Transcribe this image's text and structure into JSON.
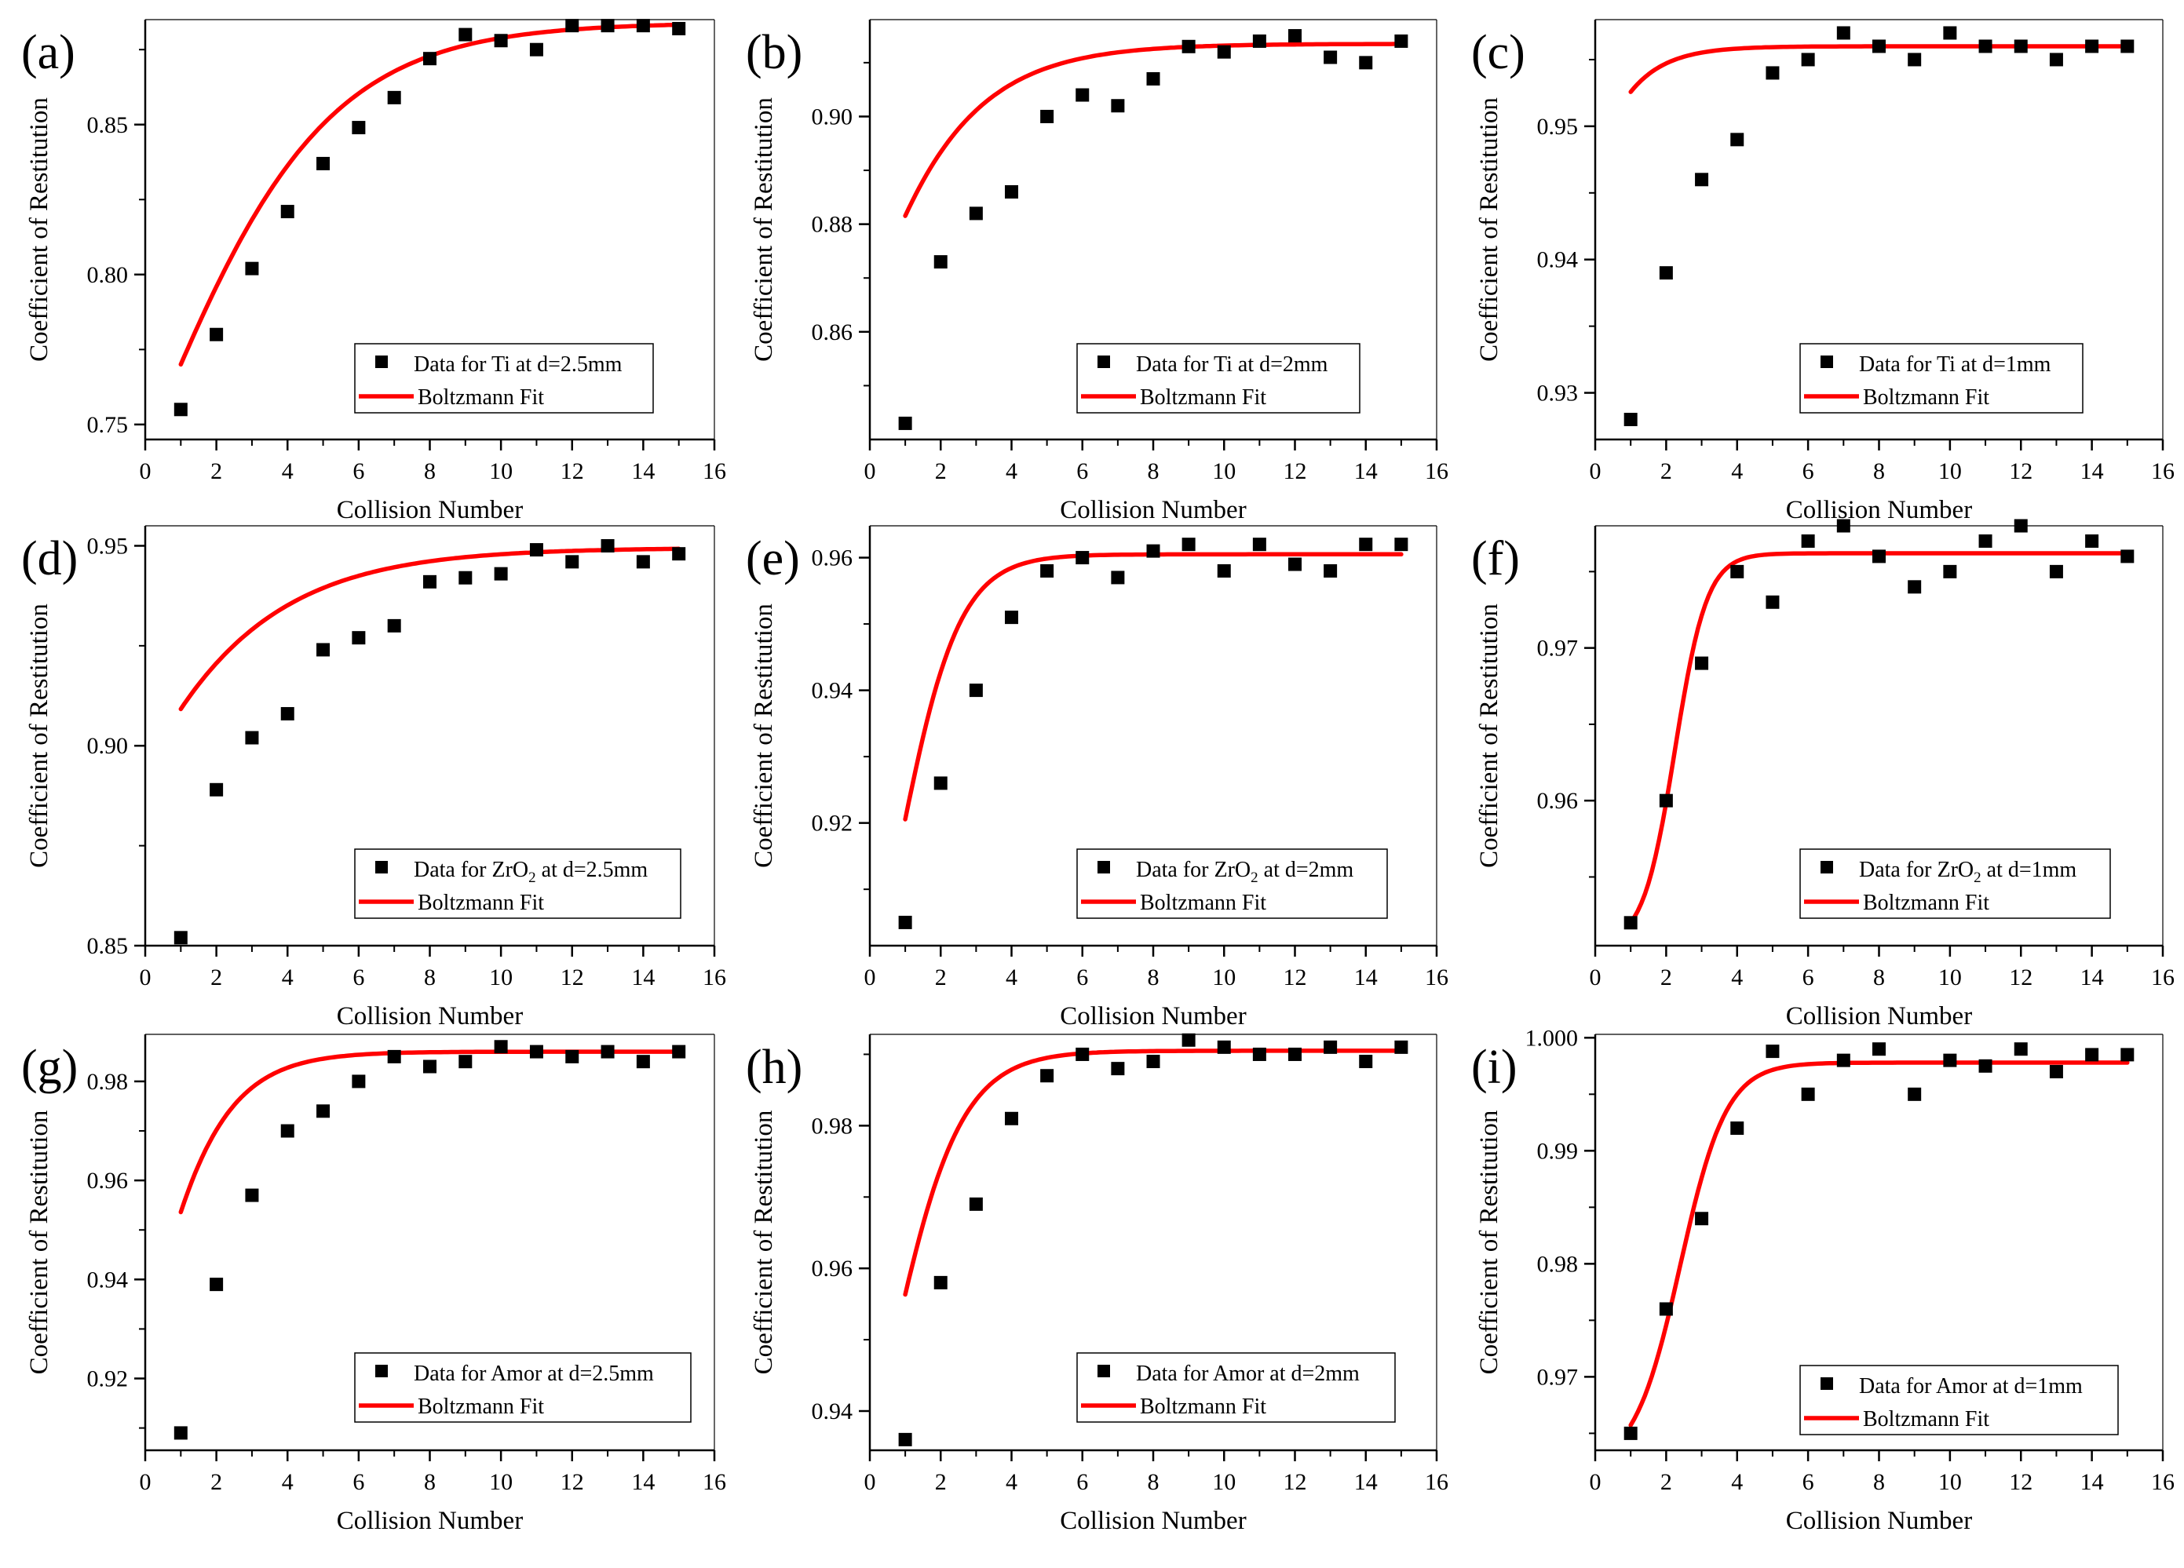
{
  "figure": {
    "xlabel": "Collision Number",
    "ylabel": "Coefficient of Restitution",
    "fit_label": "Boltzmann Fit",
    "marker_color": "#000000",
    "fit_color": "#ff0000"
  },
  "chart_data": [
    {
      "panel": "(a)",
      "type": "scatter",
      "title": "",
      "xlabel": "Collision Number",
      "ylabel": "Coefficient of Restitution",
      "xlim": [
        0,
        16
      ],
      "ylim": [
        0.745,
        0.885
      ],
      "xticks": [
        "0",
        "2",
        "4",
        "6",
        "8",
        "10",
        "12",
        "14",
        "16"
      ],
      "yticks": [
        0.75,
        0.8,
        0.85
      ],
      "ytick_labels": [
        "0.75",
        "0.80",
        "0.85"
      ],
      "legend": {
        "pre": "Data for Ti at d=2.5mm",
        "sub": "",
        "post": "",
        "fit": "Boltzmann Fit"
      },
      "series": [
        {
          "name": "Data for Ti at d=2.5mm",
          "x": [
            1,
            2,
            3,
            4,
            5,
            6,
            7,
            8,
            9,
            10,
            11,
            12,
            13,
            14,
            15
          ],
          "values": [
            0.755,
            0.78,
            0.802,
            0.821,
            0.837,
            0.849,
            0.859,
            0.872,
            0.88,
            0.878,
            0.875,
            0.883,
            0.883,
            0.883,
            0.882
          ]
        },
        {
          "name": "Boltzmann Fit",
          "fit": {
            "A1": 0.6,
            "A2": 0.884,
            "x0": 0.0,
            "dx": 2.5
          }
        }
      ]
    },
    {
      "panel": "(b)",
      "type": "scatter",
      "title": "",
      "xlabel": "Collision Number",
      "ylabel": "Coefficient of Restitution",
      "xlim": [
        0,
        16
      ],
      "ylim": [
        0.84,
        0.918
      ],
      "xticks": [
        "0",
        "2",
        "4",
        "6",
        "8",
        "10",
        "12",
        "14",
        "16"
      ],
      "yticks": [
        0.86,
        0.88,
        0.9
      ],
      "ytick_labels": [
        "0.86",
        "0.88",
        "0.90"
      ],
      "legend": {
        "pre": "Data for Ti at d=2mm",
        "sub": "",
        "post": "",
        "fit": "Boltzmann Fit"
      },
      "series": [
        {
          "name": "Data for Ti at d=2mm",
          "x": [
            1,
            2,
            3,
            4,
            5,
            6,
            7,
            8,
            9,
            10,
            11,
            12,
            13,
            14,
            15
          ],
          "values": [
            0.843,
            0.873,
            0.882,
            0.886,
            0.9,
            0.904,
            0.902,
            0.907,
            0.913,
            0.912,
            0.914,
            0.915,
            0.911,
            0.91,
            0.914
          ]
        },
        {
          "name": "Boltzmann Fit",
          "fit": {
            "A1": 0.7,
            "A2": 0.9135,
            "x0": -2.3,
            "dx": 1.9
          }
        }
      ]
    },
    {
      "panel": "(c)",
      "type": "scatter",
      "title": "",
      "xlabel": "Collision Number",
      "ylabel": "Coefficient of Restitution",
      "xlim": [
        0,
        16
      ],
      "ylim": [
        0.9265,
        0.958
      ],
      "xticks": [
        "0",
        "2",
        "4",
        "6",
        "8",
        "10",
        "12",
        "14",
        "16"
      ],
      "yticks": [
        0.93,
        0.94,
        0.95
      ],
      "ytick_labels": [
        "0.93",
        "0.94",
        "0.95"
      ],
      "legend": {
        "pre": "Data for Ti at d=1mm",
        "sub": "",
        "post": "",
        "fit": "Boltzmann Fit"
      },
      "series": [
        {
          "name": "Data for Ti at d=1mm",
          "x": [
            1,
            2,
            3,
            4,
            5,
            6,
            7,
            8,
            9,
            10,
            11,
            12,
            13,
            14,
            15
          ],
          "values": [
            0.928,
            0.939,
            0.946,
            0.949,
            0.954,
            0.955,
            0.957,
            0.956,
            0.955,
            0.957,
            0.956,
            0.956,
            0.955,
            0.956,
            0.956
          ]
        },
        {
          "name": "Boltzmann Fit",
          "fit": {
            "A1": 0.85,
            "A2": 0.956,
            "x0": -2.4,
            "dx": 1.0
          }
        }
      ]
    },
    {
      "panel": "(d)",
      "type": "scatter",
      "title": "",
      "xlabel": "Collision Number",
      "ylabel": "Coefficient of Restitution",
      "xlim": [
        0,
        16
      ],
      "ylim": [
        0.85,
        0.955
      ],
      "xticks": [
        "0",
        "2",
        "4",
        "6",
        "8",
        "10",
        "12",
        "14",
        "16"
      ],
      "yticks": [
        0.85,
        0.9,
        0.95
      ],
      "ytick_labels": [
        "0.85",
        "0.90",
        "0.95"
      ],
      "legend": {
        "pre": "Data for ZrO",
        "sub": "2",
        "post": " at d=2.5mm",
        "fit": "Boltzmann Fit"
      },
      "series": [
        {
          "name": "Data for ZrO2 at d=2.5mm",
          "x": [
            1,
            2,
            3,
            4,
            5,
            6,
            7,
            8,
            9,
            10,
            11,
            12,
            13,
            14,
            15
          ],
          "values": [
            0.852,
            0.889,
            0.902,
            0.908,
            0.924,
            0.927,
            0.93,
            0.941,
            0.942,
            0.943,
            0.949,
            0.946,
            0.95,
            0.946,
            0.948
          ]
        },
        {
          "name": "Boltzmann Fit",
          "fit": {
            "A1": 0.6,
            "A2": 0.9495,
            "x0": -4.5,
            "dx": 2.7
          }
        }
      ]
    },
    {
      "panel": "(e)",
      "type": "scatter",
      "title": "",
      "xlabel": "Collision Number",
      "ylabel": "Coefficient of Restitution",
      "xlim": [
        0,
        16
      ],
      "ylim": [
        0.9015,
        0.9648
      ],
      "xticks": [
        "0",
        "2",
        "4",
        "6",
        "8",
        "10",
        "12",
        "14",
        "16"
      ],
      "yticks": [
        0.92,
        0.94,
        0.96
      ],
      "ytick_labels": [
        "0.92",
        "0.94",
        "0.96"
      ],
      "legend": {
        "pre": "Data for ZrO",
        "sub": "2",
        "post": " at d=2mm",
        "fit": "Boltzmann Fit"
      },
      "series": [
        {
          "name": "Data for ZrO2 at d=2mm",
          "x": [
            1,
            2,
            3,
            4,
            5,
            6,
            7,
            8,
            9,
            10,
            11,
            12,
            13,
            14,
            15
          ],
          "values": [
            0.905,
            0.926,
            0.94,
            0.951,
            0.958,
            0.96,
            0.957,
            0.961,
            0.962,
            0.958,
            0.962,
            0.959,
            0.958,
            0.962,
            0.962
          ]
        },
        {
          "name": "Boltzmann Fit",
          "fit": {
            "A1": 0.87,
            "A2": 0.9605,
            "x0": 0.8,
            "dx": 0.85
          }
        }
      ]
    },
    {
      "panel": "(f)",
      "type": "scatter",
      "title": "",
      "xlabel": "Collision Number",
      "ylabel": "Coefficient of Restitution",
      "xlim": [
        0,
        16
      ],
      "ylim": [
        0.9505,
        0.978
      ],
      "xticks": [
        "0",
        "2",
        "4",
        "6",
        "8",
        "10",
        "12",
        "14",
        "16"
      ],
      "yticks": [
        0.96,
        0.97
      ],
      "ytick_labels": [
        "0.96",
        "0.97"
      ],
      "legend": {
        "pre": "Data for ZrO",
        "sub": "2",
        "post": " at d=1mm",
        "fit": "Boltzmann Fit"
      },
      "series": [
        {
          "name": "Data for ZrO2 at d=1mm",
          "x": [
            1,
            2,
            3,
            4,
            5,
            6,
            7,
            8,
            9,
            10,
            11,
            12,
            13,
            14,
            15
          ],
          "values": [
            0.952,
            0.96,
            0.969,
            0.975,
            0.973,
            0.977,
            0.978,
            0.976,
            0.974,
            0.975,
            0.977,
            0.978,
            0.975,
            0.977,
            0.976
          ]
        },
        {
          "name": "Boltzmann Fit",
          "fit": {
            "A1": 0.9505,
            "A2": 0.9762,
            "x0": 2.25,
            "dx": 0.45
          }
        }
      ]
    },
    {
      "panel": "(g)",
      "type": "scatter",
      "title": "",
      "xlabel": "Collision Number",
      "ylabel": "Coefficient of Restitution",
      "xlim": [
        0,
        16
      ],
      "ylim": [
        0.9055,
        0.9895
      ],
      "xticks": [
        "0",
        "2",
        "4",
        "6",
        "8",
        "10",
        "12",
        "14",
        "16"
      ],
      "yticks": [
        0.92,
        0.94,
        0.96,
        0.98
      ],
      "ytick_labels": [
        "0.92",
        "0.94",
        "0.96",
        "0.98"
      ],
      "legend": {
        "pre": "Data for Amor at d=2.5mm",
        "sub": "",
        "post": "",
        "fit": "Boltzmann Fit"
      },
      "series": [
        {
          "name": "Data for Amor at d=2.5mm",
          "x": [
            1,
            2,
            3,
            4,
            5,
            6,
            7,
            8,
            9,
            10,
            11,
            12,
            13,
            14,
            15
          ],
          "values": [
            0.909,
            0.939,
            0.957,
            0.97,
            0.974,
            0.98,
            0.985,
            0.983,
            0.984,
            0.987,
            0.986,
            0.985,
            0.986,
            0.984,
            0.986
          ]
        },
        {
          "name": "Boltzmann Fit",
          "fit": {
            "A1": 0.82,
            "A2": 0.986,
            "x0": -0.7,
            "dx": 1.2
          }
        }
      ]
    },
    {
      "panel": "(h)",
      "type": "scatter",
      "title": "",
      "xlabel": "Collision Number",
      "ylabel": "Coefficient of Restitution",
      "xlim": [
        0,
        16
      ],
      "ylim": [
        0.9345,
        0.9928
      ],
      "xticks": [
        "0",
        "2",
        "4",
        "6",
        "8",
        "10",
        "12",
        "14",
        "16"
      ],
      "yticks": [
        0.94,
        0.96,
        0.98
      ],
      "ytick_labels": [
        "0.94",
        "0.96",
        "0.98"
      ],
      "legend": {
        "pre": "Data for Amor at d=2mm",
        "sub": "",
        "post": "",
        "fit": "Boltzmann Fit"
      },
      "series": [
        {
          "name": "Data for Amor at d=2mm",
          "x": [
            1,
            2,
            3,
            4,
            5,
            6,
            7,
            8,
            9,
            10,
            11,
            12,
            13,
            14,
            15
          ],
          "values": [
            0.936,
            0.958,
            0.969,
            0.981,
            0.987,
            0.99,
            0.988,
            0.989,
            0.992,
            0.991,
            0.99,
            0.99,
            0.991,
            0.989,
            0.991
          ]
        },
        {
          "name": "Boltzmann Fit",
          "fit": {
            "A1": 0.9,
            "A2": 0.9905,
            "x0": 0.5,
            "dx": 1.0
          }
        }
      ]
    },
    {
      "panel": "(i)",
      "type": "scatter",
      "title": "",
      "xlabel": "Collision Number",
      "ylabel": "Coefficient of Restitution",
      "xlim": [
        0,
        16
      ],
      "ylim": [
        0.9635,
        1.0003
      ],
      "xticks": [
        "0",
        "2",
        "4",
        "6",
        "8",
        "10",
        "12",
        "14",
        "16"
      ],
      "yticks": [
        0.97,
        0.98,
        0.99,
        1.0
      ],
      "ytick_labels": [
        "0.97",
        "0.98",
        "0.99",
        "1.000"
      ],
      "legend": {
        "pre": "Data for Amor at d=1mm",
        "sub": "",
        "post": "",
        "fit": "Boltzmann Fit"
      },
      "series": [
        {
          "name": "Data for Amor at d=1mm",
          "x": [
            1,
            2,
            3,
            4,
            5,
            6,
            7,
            8,
            9,
            10,
            11,
            12,
            13,
            14,
            15
          ],
          "values": [
            0.965,
            0.976,
            0.984,
            0.992,
            0.9988,
            0.995,
            0.998,
            0.999,
            0.995,
            0.998,
            0.9975,
            0.999,
            0.997,
            0.9985,
            0.9985
          ]
        },
        {
          "name": "Boltzmann Fit",
          "fit": {
            "A1": 0.962,
            "A2": 0.9978,
            "x0": 2.4,
            "dx": 0.65
          }
        }
      ]
    }
  ]
}
